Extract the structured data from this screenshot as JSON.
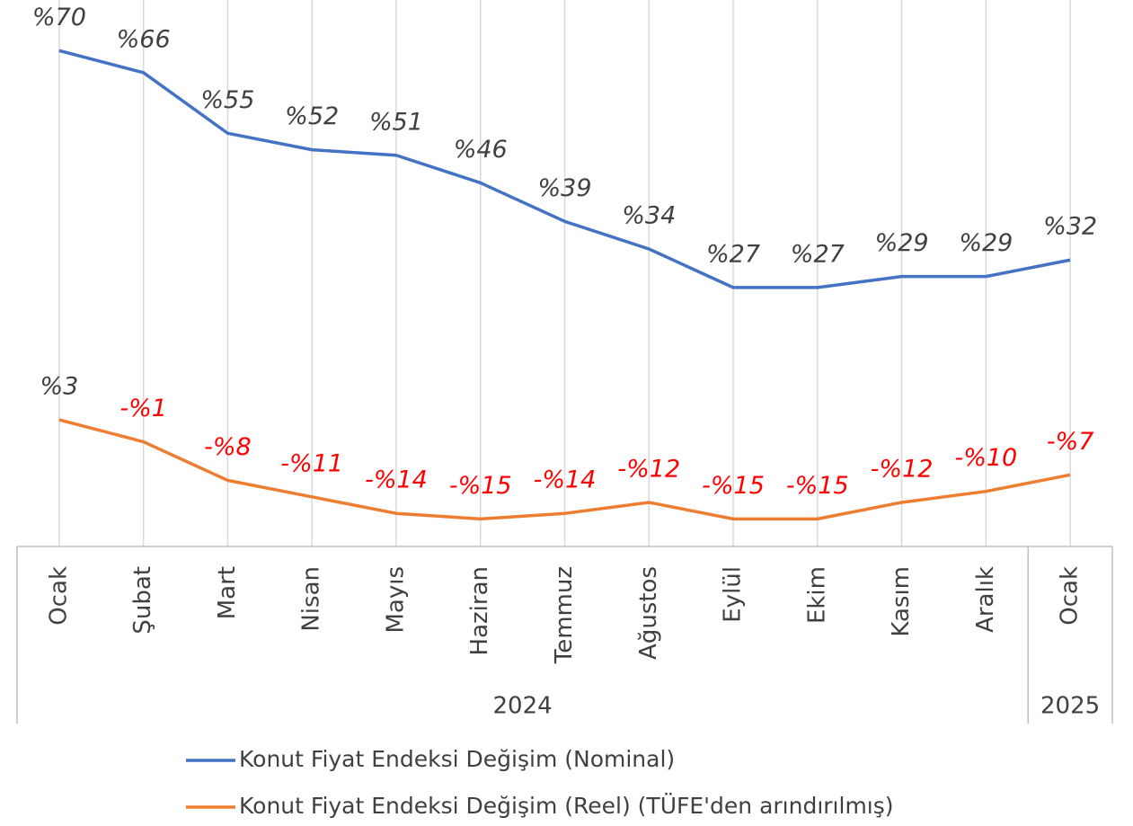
{
  "chart_data": {
    "type": "line",
    "categories": [
      "Ocak",
      "Şubat",
      "Mart",
      "Nisan",
      "Mayıs",
      "Haziran",
      "Temmuz",
      "Ağustos",
      "Eylül",
      "Ekim",
      "Kasım",
      "Aralık",
      "Ocak"
    ],
    "groups": [
      {
        "label": "2024",
        "count": 12
      },
      {
        "label": "2025",
        "count": 1
      }
    ],
    "series": [
      {
        "name": "Konut Fiyat Endeksi Değişim (Nominal)",
        "color": "#4472c4",
        "values": [
          70,
          66,
          55,
          52,
          51,
          46,
          39,
          34,
          27,
          27,
          29,
          29,
          32
        ],
        "value_labels": [
          "%70",
          "%66",
          "%55",
          "%52",
          "%51",
          "%46",
          "%39",
          "%34",
          "%27",
          "%27",
          "%29",
          "%29",
          "%32"
        ]
      },
      {
        "name": "Konut Fiyat Endeksi Değişim (Reel) (TÜFE'den arındırılmış)",
        "color": "#ed7d31",
        "values": [
          3,
          -1,
          -8,
          -11,
          -14,
          -15,
          -14,
          -12,
          -15,
          -15,
          -12,
          -10,
          -7
        ],
        "value_labels": [
          "%3",
          "-%1",
          "-%8",
          "-%11",
          "-%14",
          "-%15",
          "-%14",
          "-%12",
          "-%15",
          "-%15",
          "-%12",
          "-%10",
          "-%7"
        ]
      }
    ],
    "ylim": [
      -20,
      80
    ],
    "label_color": "#404040",
    "negative_label_color": "#ff0000",
    "grid": true,
    "legend": "bottom"
  }
}
